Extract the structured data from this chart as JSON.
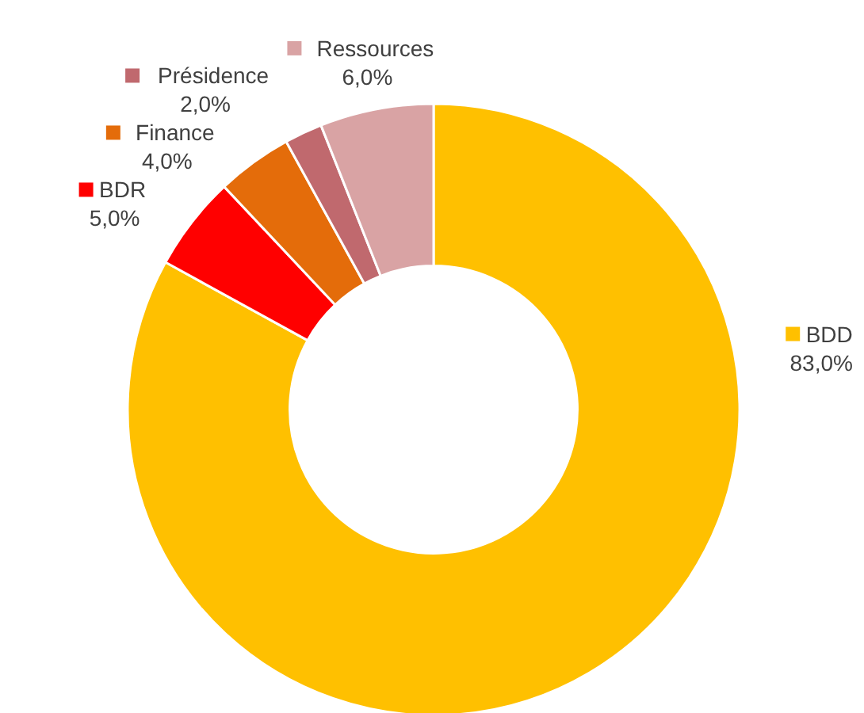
{
  "chart_data": {
    "type": "donut",
    "categories": [
      "BDD",
      "BDR",
      "Finance",
      "Présidence",
      "Ressources"
    ],
    "values": [
      83,
      5,
      4,
      2,
      6
    ],
    "value_labels": [
      "83,0%",
      "5,0%",
      "4,0%",
      "2,0%",
      "6,0%"
    ],
    "colors": [
      "#ffc000",
      "#ff0000",
      "#e46c0a",
      "#c0696e",
      "#d9a3a4"
    ],
    "legend": "top"
  }
}
